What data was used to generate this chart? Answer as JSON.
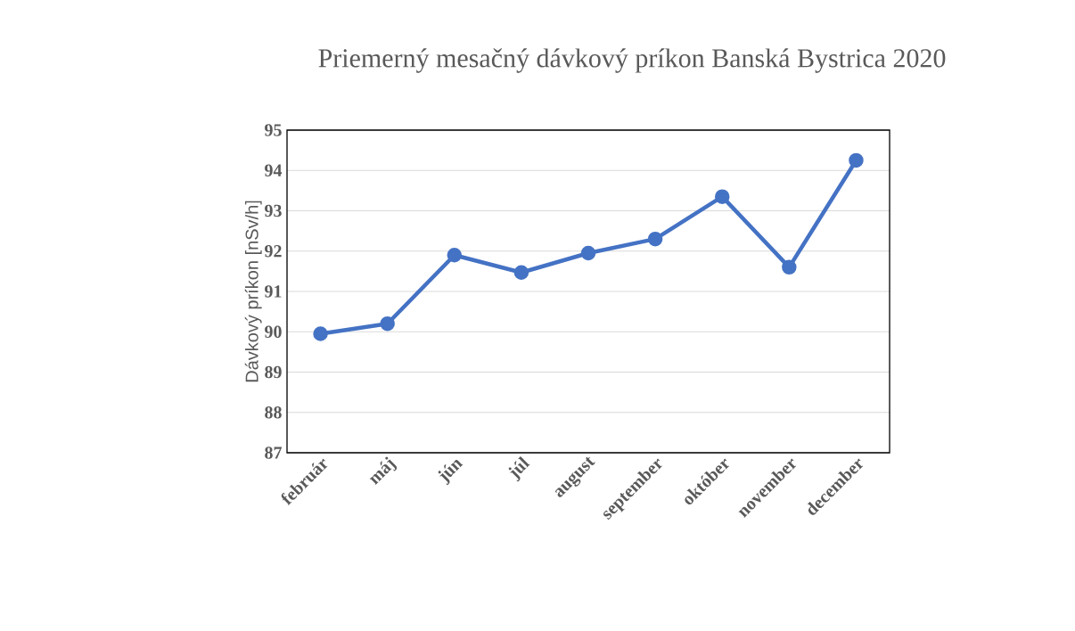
{
  "chart_data": {
    "type": "line",
    "title": "Priemerný mesačný dávkový príkon Banská Bystrica 2020",
    "ylabel": "Dávkový príkon  [nSv/h]",
    "categories": [
      "február",
      "máj",
      "jún",
      "júl",
      "august",
      "september",
      "október",
      "november",
      "december"
    ],
    "series": [
      {
        "color": "#4472c4",
        "values": [
          89.95,
          90.2,
          91.9,
          91.47,
          91.95,
          92.3,
          93.35,
          91.6,
          94.25
        ]
      }
    ],
    "ylim": [
      87,
      95
    ],
    "yticks": [
      87,
      88,
      89,
      90,
      91,
      92,
      93,
      94,
      95
    ],
    "grid": "y",
    "marker": "circle",
    "line_style": "solid"
  }
}
